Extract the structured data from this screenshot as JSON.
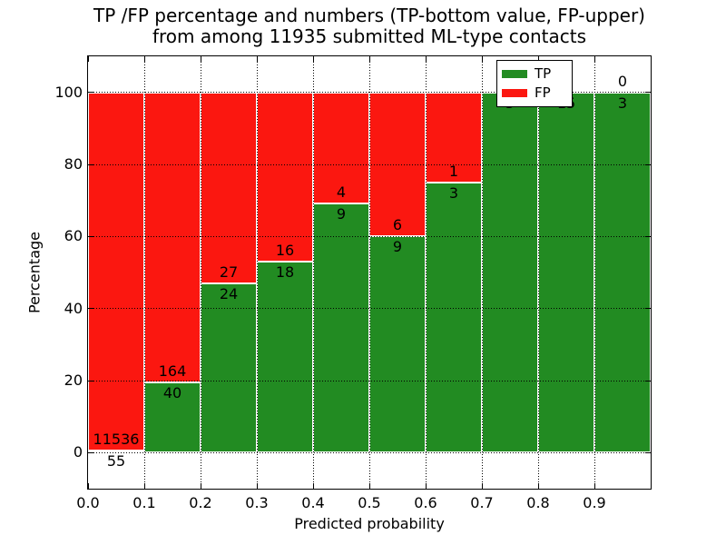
{
  "chart_data": {
    "type": "bar",
    "stacked": true,
    "orientation": "vertical",
    "title_line1": "TP /FP percentage and numbers (TP-bottom value, FP-upper)",
    "title_line2": "from among 11935 submitted ML-type contacts",
    "xlabel": "Predicted probability",
    "ylabel": "Percentage",
    "total_contacts": 11935,
    "xlim": [
      0.0,
      1.0
    ],
    "ylim": [
      -10,
      110
    ],
    "bin_width": 0.1,
    "x_bin_starts": [
      0.0,
      0.1,
      0.2,
      0.3,
      0.4,
      0.5,
      0.6,
      0.7,
      0.8,
      0.9
    ],
    "xtick_values": [
      0.0,
      0.1,
      0.2,
      0.3,
      0.4,
      0.5,
      0.6,
      0.7,
      0.8,
      0.9
    ],
    "xtick_labels": [
      "0.0",
      "0.1",
      "0.2",
      "0.3",
      "0.4",
      "0.5",
      "0.6",
      "0.7",
      "0.8",
      "0.9"
    ],
    "ytick_values": [
      0,
      20,
      40,
      60,
      80,
      100
    ],
    "ytick_labels": [
      "0",
      "20",
      "40",
      "60",
      "80",
      "100"
    ],
    "bar_unit": "percent of bin (TP bottom, FP top)",
    "series": [
      {
        "name": "TP",
        "color": "#228b22",
        "values": [
          55,
          40,
          24,
          18,
          9,
          9,
          3,
          5,
          15,
          3
        ]
      },
      {
        "name": "FP",
        "color": "#fb1710",
        "values": [
          11536,
          164,
          27,
          16,
          4,
          6,
          1,
          0,
          0,
          0
        ]
      }
    ],
    "tp_percent_by_bin": [
      0.47,
      19.61,
      47.06,
      52.94,
      69.23,
      60.0,
      75.0,
      100.0,
      100.0,
      100.0
    ],
    "grid": true,
    "grid_style": "dotted-black",
    "bar_edge_color": "#ffffff",
    "legend": {
      "position": "upper-right",
      "entries": [
        {
          "label": "TP",
          "color": "#228b22"
        },
        {
          "label": "FP",
          "color": "#fb1710"
        }
      ]
    }
  },
  "colors": {
    "tp_green": "#228b22",
    "fp_red": "#fb1710",
    "background": "#ffffff",
    "text": "#000000"
  }
}
